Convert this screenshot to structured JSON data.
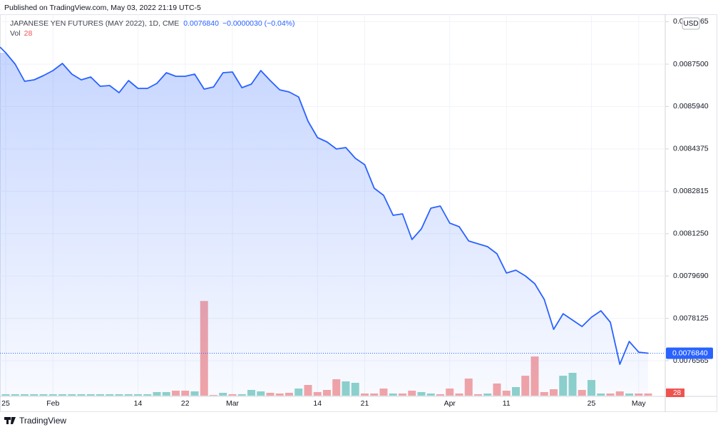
{
  "header": {
    "published": "Published on TradingView.com, May 03, 2022 21:19 UTC-5"
  },
  "chart_data": {
    "type": "area",
    "title": "JAPANESE YEN FUTURES (MAY 2022), 1D, CME",
    "last_price": {
      "value": 0.007684,
      "label": "0.0076840"
    },
    "change": "−0.0000030 (−0.04%)",
    "currency": "USD",
    "color": "#2962ff",
    "grid": true,
    "categories": [
      "25",
      null,
      null,
      null,
      null,
      "Feb",
      null,
      null,
      null,
      null,
      null,
      null,
      null,
      null,
      "14",
      null,
      null,
      null,
      null,
      "22",
      null,
      null,
      null,
      null,
      "Mar",
      null,
      null,
      null,
      null,
      null,
      null,
      null,
      null,
      "14",
      null,
      null,
      null,
      null,
      "21",
      null,
      null,
      null,
      null,
      null,
      null,
      null,
      null,
      "Apr",
      null,
      null,
      null,
      null,
      null,
      "11",
      null,
      null,
      null,
      null,
      null,
      null,
      null,
      null,
      "25",
      null,
      null,
      null,
      null,
      "May",
      null
    ],
    "values": [
      0.0087921,
      0.00875,
      0.0086869,
      0.0086922,
      0.0087079,
      0.0087263,
      0.0087526,
      0.0087132,
      0.0086922,
      0.0087027,
      0.0086685,
      0.0086711,
      0.0086448,
      0.0086895,
      0.0086606,
      0.0086606,
      0.008679,
      0.0087185,
      0.0087053,
      0.0087053,
      0.0087132,
      0.008658,
      0.0086659,
      0.0087185,
      0.0087211,
      0.0086632,
      0.0086764,
      0.0087263,
      0.0086895,
      0.0086554,
      0.0086475,
      0.0086291,
      0.0085397,
      0.0084792,
      0.0084634,
      0.0084371,
      0.0084424,
      0.008403,
      0.0083793,
      0.0082926,
      0.0082663,
      0.0081927,
      0.0081979,
      0.0081033,
      0.0081427,
      0.0082189,
      0.0082268,
      0.0081637,
      0.0081506,
      0.008098,
      0.0080875,
      0.008077,
      0.0080507,
      0.0079797,
      0.0079902,
      0.0079692,
      0.0079403,
      0.0078824,
      0.007772,
      0.0078298,
      0.0078062,
      0.0077825,
      0.0078167,
      0.0078404,
      0.0077983,
      0.0076432,
      0.0077273,
      0.0076879,
      0.007684
    ],
    "volume": {
      "name": "Vol",
      "values": [
        19,
        19,
        19,
        19,
        19,
        19,
        19,
        19,
        19,
        19,
        19,
        19,
        19,
        19,
        19,
        19,
        47,
        47,
        65,
        65,
        56,
        1241,
        9,
        37,
        19,
        19,
        75,
        56,
        37,
        28,
        37,
        93,
        140,
        47,
        75,
        215,
        187,
        168,
        28,
        28,
        93,
        28,
        28,
        65,
        47,
        28,
        19,
        93,
        28,
        224,
        19,
        28,
        159,
        65,
        112,
        261,
        513,
        47,
        84,
        261,
        299,
        75,
        205,
        28,
        28,
        56,
        28,
        28,
        28
      ],
      "colors": [
        "#8fd3ca",
        "#8fd3ca",
        "#8fd3ca",
        "#8fd3ca",
        "#8fd3ca",
        "#8fd3ca",
        "#8fd3ca",
        "#8fd3ca",
        "#8fd3ca",
        "#8fd3ca",
        "#8fd3ca",
        "#8fd3ca",
        "#8fd3ca",
        "#8fd3ca",
        "#8fd3ca",
        "#8fd3ca",
        "#8fd3ca",
        "#8fd3ca",
        "#f5a5a5",
        "#f5a5a5",
        "#8fd3ca",
        "#f5a5a5",
        "#f5a5a5",
        "#8fd3ca",
        "#f5a5a5",
        "#8fd3ca",
        "#8fd3ca",
        "#8fd3ca",
        "#f5a5a5",
        "#f5a5a5",
        "#f5a5a5",
        "#8fd3ca",
        "#f5a5a5",
        "#f5a5a5",
        "#f5a5a5",
        "#f5a5a5",
        "#8fd3ca",
        "#8fd3ca",
        "#f5a5a5",
        "#f5a5a5",
        "#f5a5a5",
        "#8fd3ca",
        "#f5a5a5",
        "#f5a5a5",
        "#8fd3ca",
        "#8fd3ca",
        "#f5a5a5",
        "#f5a5a5",
        "#f5a5a5",
        "#f5a5a5",
        "#f5a5a5",
        "#8fd3ca",
        "#f5a5a5",
        "#f5a5a5",
        "#8fd3ca",
        "#f5a5a5",
        "#f5a5a5",
        "#f5a5a5",
        "#f5a5a5",
        "#8fd3ca",
        "#8fd3ca",
        "#f5a5a5",
        "#8fd3ca",
        "#8fd3ca",
        "#f5a5a5",
        "#f5a5a5",
        "#8fd3ca",
        "#f5a5a5",
        "#f5a5a5"
      ]
    },
    "ylim": [
      0.007525,
      0.008934
    ],
    "yticks": [
      {
        "value": 0.0089065,
        "label": "0.0089065"
      },
      {
        "value": 0.00875,
        "label": "0.0087500"
      },
      {
        "value": 0.008594,
        "label": "0.0085940"
      },
      {
        "value": 0.0084375,
        "label": "0.0084375"
      },
      {
        "value": 0.0082815,
        "label": "0.0082815"
      },
      {
        "value": 0.008125,
        "label": "0.0081250"
      },
      {
        "value": 0.007969,
        "label": "0.0079690"
      },
      {
        "value": 0.0078125,
        "label": "0.0078125"
      },
      {
        "value": 0.0076565,
        "label": "0.0076565"
      }
    ]
  },
  "footer": {
    "brand": "TradingView"
  }
}
